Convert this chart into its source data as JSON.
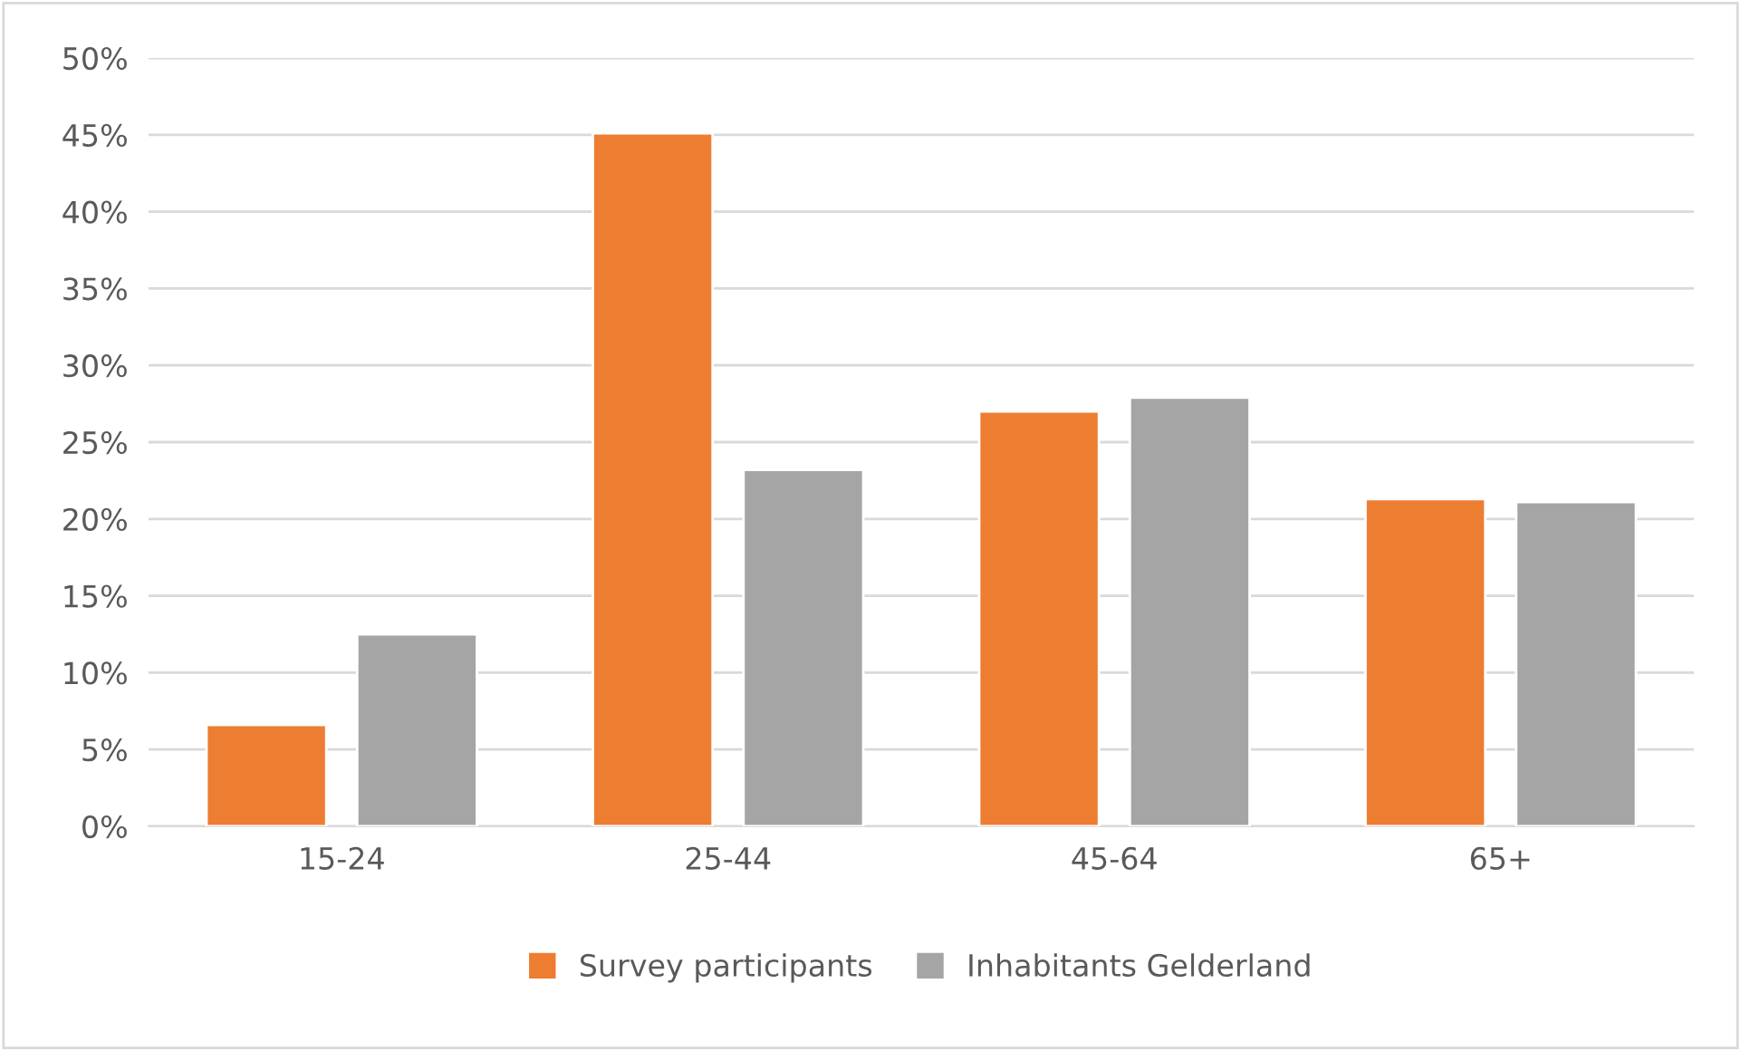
{
  "chart_data": {
    "type": "bar",
    "categories": [
      "15-24",
      "25-44",
      "45-64",
      "65+"
    ],
    "series": [
      {
        "name": "Survey participants",
        "color": "#ed7d31",
        "values": [
          6.6,
          45.1,
          27.0,
          21.3
        ]
      },
      {
        "name": "Inhabitants Gelderland",
        "color": "#a5a5a5",
        "values": [
          12.5,
          23.2,
          27.9,
          21.1
        ]
      }
    ],
    "ylim": [
      0,
      50
    ],
    "yticks": [
      {
        "value": 0,
        "label": "0%"
      },
      {
        "value": 5,
        "label": "5%"
      },
      {
        "value": 10,
        "label": "10%"
      },
      {
        "value": 15,
        "label": "15%"
      },
      {
        "value": 20,
        "label": "20%"
      },
      {
        "value": 25,
        "label": "25%"
      },
      {
        "value": 30,
        "label": "30%"
      },
      {
        "value": 35,
        "label": "35%"
      },
      {
        "value": 40,
        "label": "40%"
      },
      {
        "value": 45,
        "label": "45%"
      },
      {
        "value": 50,
        "label": "50%"
      }
    ],
    "grid": "y",
    "legend": "bottom"
  }
}
